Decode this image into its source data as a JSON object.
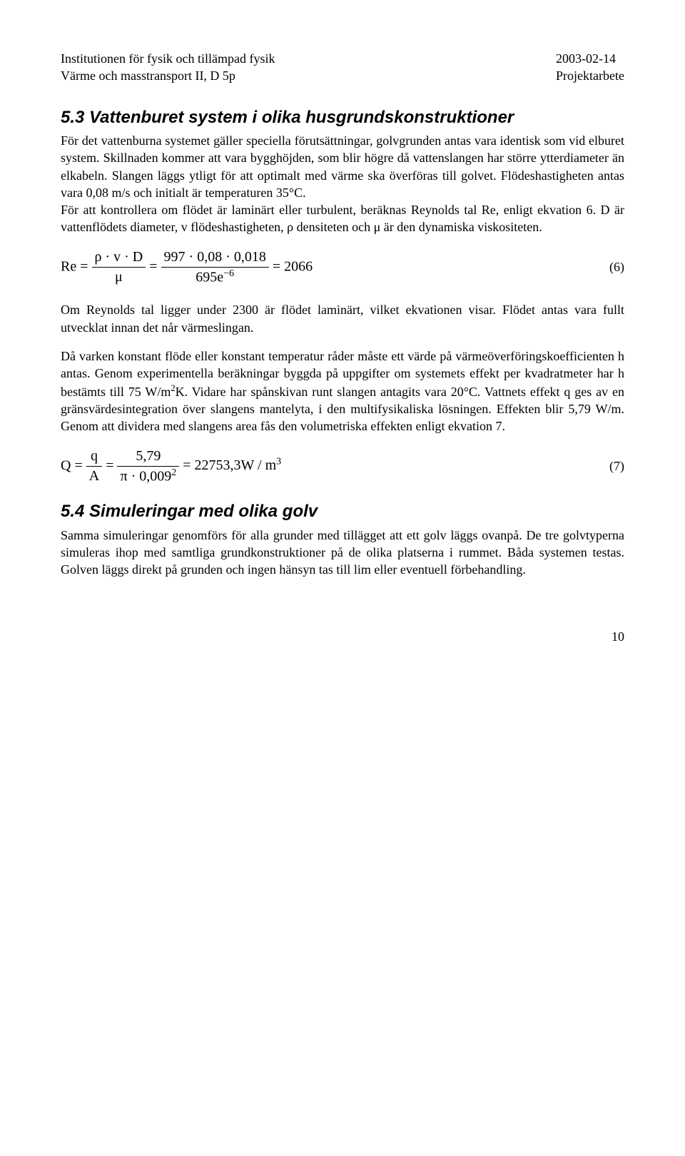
{
  "header": {
    "left_line1": "Institutionen för fysik och tillämpad fysik",
    "left_line2": "Värme och masstransport II, D 5p",
    "right_line1": "2003-02-14",
    "right_line2": "Projektarbete"
  },
  "section53": {
    "heading": "5.3 Vattenburet system i olika husgrundskonstruktioner",
    "para1": "För det vattenburna systemet gäller speciella förutsättningar, golvgrunden antas vara identisk som vid elburet system. Skillnaden kommer att vara bygghöjden, som blir högre då vattenslangen har större ytterdiameter än elkabeln. Slangen läggs ytligt för att optimalt med värme ska överföras till golvet. Flödeshastigheten antas vara 0,08 m/s och initialt är temperaturen 35°C.",
    "para2": "För att kontrollera om flödet är laminärt eller turbulent, beräknas Reynolds tal Re, enligt ekvation 6. D är vattenflödets diameter, v  flödeshastigheten, ρ densiteten och μ är den dynamiska viskositeten.",
    "eq6_num": "(6)",
    "eq6": {
      "lhs": "Re =",
      "frac1_num": "ρ · v · D",
      "frac1_den": "μ",
      "mid": "=",
      "frac2_num": "997 · 0,08 · 0,018",
      "frac2_den_base": "695e",
      "frac2_den_exp": "−6",
      "rhs": "= 2066"
    },
    "para3": "Om Reynolds tal ligger under 2300 är flödet laminärt, vilket ekvationen visar. Flödet antas vara fullt utvecklat innan det når värmeslingan.",
    "para4_part1": "Då varken konstant flöde eller konstant temperatur råder måste ett värde på värmeöverföringskoefficienten h antas. Genom experimentella beräkningar byggda på uppgifter om systemets effekt per kvadratmeter har h bestämts till 75 W/m",
    "para4_sup1": "2",
    "para4_part2": "K. Vidare har spånskivan runt slangen antagits vara 20°C. Vattnets effekt q ges av en gränsvärdesintegration över slangens mantelyta, i den multifysikaliska lösningen. Effekten blir 5,79 W/m. Genom att dividera med slangens area fås den volumetriska effekten enligt ekvation 7.",
    "eq7_num": "(7)",
    "eq7": {
      "lhs": "Q =",
      "frac1_num": "q",
      "frac1_den": "A",
      "mid": "=",
      "frac2_num": "5,79",
      "frac2_den_pre": "π · 0,009",
      "frac2_den_exp": "2",
      "rhs_pre": "= 22753,3W / m",
      "rhs_exp": "3"
    }
  },
  "section54": {
    "heading": "5.4 Simuleringar med olika golv",
    "para1": "Samma simuleringar genomförs för alla grunder med tillägget att ett golv läggs ovanpå. De tre golvtyperna simuleras ihop med samtliga grundkonstruktioner på de olika platserna i rummet. Båda systemen testas. Golven läggs direkt på grunden och ingen hänsyn tas till lim eller eventuell förbehandling."
  },
  "page_number": "10"
}
